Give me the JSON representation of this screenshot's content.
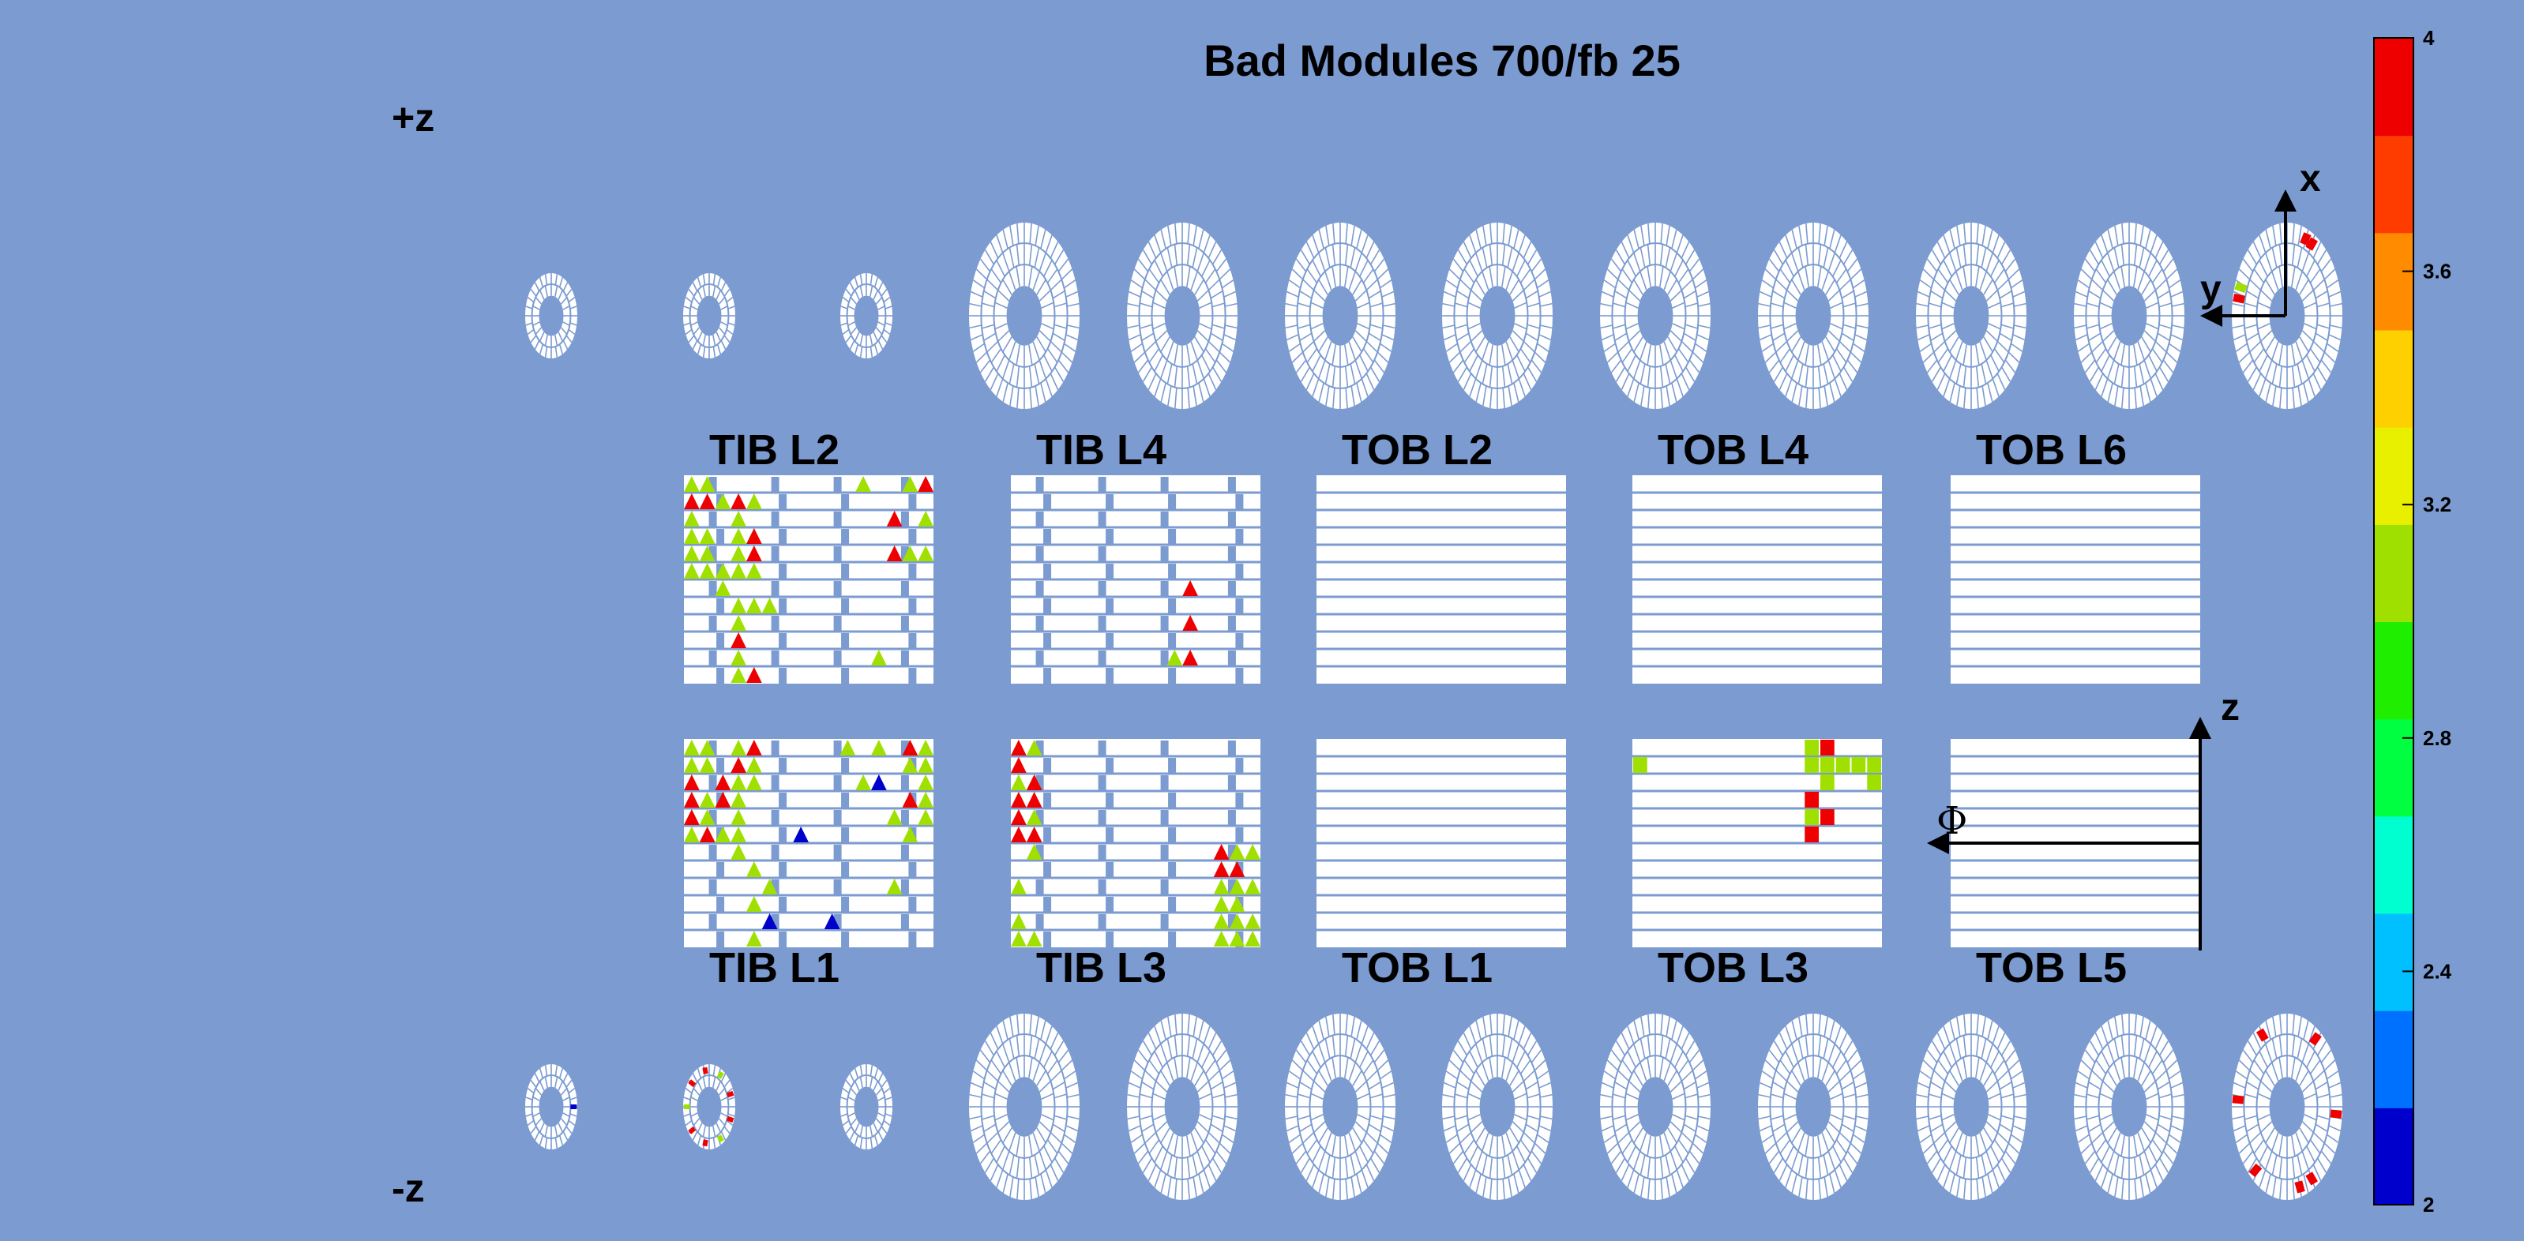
{
  "title": "Bad Modules 700/fb 25",
  "side_labels": {
    "plus": "+z",
    "minus": "-z"
  },
  "axis_glyphs": {
    "x": "x",
    "y": "y",
    "z": "z",
    "phi": "Φ"
  },
  "colors": {
    "background": "#7b9bd1",
    "module": "#ffffff",
    "frame": "#000000"
  },
  "colorbar": {
    "min": 2,
    "max": 4,
    "tick_labels": [
      "4",
      "3.6",
      "3.2",
      "2.8",
      "2.4",
      "2"
    ],
    "stops": [
      "#0000cc",
      "#0070ff",
      "#00c0ff",
      "#00ffd0",
      "#00ff40",
      "#20ee00",
      "#a0e000",
      "#e8f000",
      "#ffd000",
      "#ff8c00",
      "#ff3c00",
      "#ee0000"
    ]
  },
  "chart_data": {
    "type": "heatmap",
    "title": "Bad Modules 700/fb 25",
    "value_range": [
      2,
      4
    ],
    "barrel_layers": [
      {
        "name": "TIB L2",
        "side": "upper",
        "bad_modules": [
          {
            "row": 0,
            "col": 0,
            "value": 3.1
          },
          {
            "row": 0,
            "col": 1,
            "value": 3.1
          },
          {
            "row": 0,
            "col": 11,
            "value": 3.1
          },
          {
            "row": 0,
            "col": 14,
            "value": 3.1
          },
          {
            "row": 0,
            "col": 15,
            "value": 3.9
          },
          {
            "row": 1,
            "col": 0,
            "value": 3.9
          },
          {
            "row": 1,
            "col": 1,
            "value": 3.9
          },
          {
            "row": 1,
            "col": 2,
            "value": 3.1
          },
          {
            "row": 1,
            "col": 3,
            "value": 3.9
          },
          {
            "row": 1,
            "col": 4,
            "value": 3.1
          },
          {
            "row": 2,
            "col": 0,
            "value": 3.1
          },
          {
            "row": 2,
            "col": 3,
            "value": 3.1
          },
          {
            "row": 2,
            "col": 13,
            "value": 3.9
          },
          {
            "row": 2,
            "col": 15,
            "value": 3.1
          },
          {
            "row": 3,
            "col": 0,
            "value": 3.1
          },
          {
            "row": 3,
            "col": 1,
            "value": 3.1
          },
          {
            "row": 3,
            "col": 3,
            "value": 3.1
          },
          {
            "row": 3,
            "col": 4,
            "value": 3.9
          },
          {
            "row": 4,
            "col": 0,
            "value": 3.1
          },
          {
            "row": 4,
            "col": 1,
            "value": 3.1
          },
          {
            "row": 4,
            "col": 3,
            "value": 3.1
          },
          {
            "row": 4,
            "col": 4,
            "value": 3.9
          },
          {
            "row": 4,
            "col": 13,
            "value": 3.9
          },
          {
            "row": 4,
            "col": 14,
            "value": 3.1
          },
          {
            "row": 4,
            "col": 15,
            "value": 3.1
          },
          {
            "row": 5,
            "col": 0,
            "value": 3.1
          },
          {
            "row": 5,
            "col": 1,
            "value": 3.1
          },
          {
            "row": 5,
            "col": 2,
            "value": 3.1
          },
          {
            "row": 5,
            "col": 3,
            "value": 3.1
          },
          {
            "row": 5,
            "col": 4,
            "value": 3.1
          },
          {
            "row": 6,
            "col": 2,
            "value": 3.1
          },
          {
            "row": 7,
            "col": 3,
            "value": 3.1
          },
          {
            "row": 7,
            "col": 4,
            "value": 3.1
          },
          {
            "row": 7,
            "col": 5,
            "value": 3.1
          },
          {
            "row": 8,
            "col": 3,
            "value": 3.1
          },
          {
            "row": 9,
            "col": 3,
            "value": 3.9
          },
          {
            "row": 10,
            "col": 3,
            "value": 3.1
          },
          {
            "row": 10,
            "col": 12,
            "value": 3.1
          },
          {
            "row": 11,
            "col": 3,
            "value": 3.1
          },
          {
            "row": 11,
            "col": 4,
            "value": 3.9
          }
        ]
      },
      {
        "name": "TIB L4",
        "side": "upper",
        "bad_modules": [
          {
            "row": 6,
            "col": 11,
            "value": 3.9
          },
          {
            "row": 8,
            "col": 11,
            "value": 3.9
          },
          {
            "row": 10,
            "col": 11,
            "value": 3.9
          },
          {
            "row": 10,
            "col": 10,
            "value": 3.1
          }
        ]
      },
      {
        "name": "TOB L2",
        "side": "upper",
        "bad_modules": []
      },
      {
        "name": "TOB L4",
        "side": "upper",
        "bad_modules": []
      },
      {
        "name": "TOB L6",
        "side": "upper",
        "bad_modules": []
      },
      {
        "name": "TIB L1",
        "side": "lower",
        "bad_modules": [
          {
            "row": 0,
            "col": 0,
            "value": 3.1
          },
          {
            "row": 0,
            "col": 1,
            "value": 3.1
          },
          {
            "row": 0,
            "col": 3,
            "value": 3.1
          },
          {
            "row": 0,
            "col": 4,
            "value": 3.9
          },
          {
            "row": 0,
            "col": 10,
            "value": 3.1
          },
          {
            "row": 0,
            "col": 12,
            "value": 3.1
          },
          {
            "row": 0,
            "col": 14,
            "value": 3.9
          },
          {
            "row": 0,
            "col": 15,
            "value": 3.1
          },
          {
            "row": 1,
            "col": 0,
            "value": 3.1
          },
          {
            "row": 1,
            "col": 1,
            "value": 3.1
          },
          {
            "row": 1,
            "col": 3,
            "value": 3.9
          },
          {
            "row": 1,
            "col": 4,
            "value": 3.1
          },
          {
            "row": 1,
            "col": 14,
            "value": 3.1
          },
          {
            "row": 1,
            "col": 15,
            "value": 3.1
          },
          {
            "row": 2,
            "col": 0,
            "value": 3.9
          },
          {
            "row": 2,
            "col": 2,
            "value": 3.9
          },
          {
            "row": 2,
            "col": 3,
            "value": 3.1
          },
          {
            "row": 2,
            "col": 4,
            "value": 3.1
          },
          {
            "row": 2,
            "col": 11,
            "value": 3.1
          },
          {
            "row": 2,
            "col": 12,
            "value": 2.1
          },
          {
            "row": 2,
            "col": 15,
            "value": 3.1
          },
          {
            "row": 3,
            "col": 0,
            "value": 3.9
          },
          {
            "row": 3,
            "col": 1,
            "value": 3.1
          },
          {
            "row": 3,
            "col": 2,
            "value": 3.9
          },
          {
            "row": 3,
            "col": 3,
            "value": 3.1
          },
          {
            "row": 3,
            "col": 14,
            "value": 3.9
          },
          {
            "row": 3,
            "col": 15,
            "value": 3.1
          },
          {
            "row": 4,
            "col": 0,
            "value": 3.9
          },
          {
            "row": 4,
            "col": 1,
            "value": 3.1
          },
          {
            "row": 4,
            "col": 3,
            "value": 3.1
          },
          {
            "row": 4,
            "col": 13,
            "value": 3.1
          },
          {
            "row": 4,
            "col": 15,
            "value": 3.1
          },
          {
            "row": 5,
            "col": 0,
            "value": 3.1
          },
          {
            "row": 5,
            "col": 1,
            "value": 3.9
          },
          {
            "row": 5,
            "col": 2,
            "value": 3.1
          },
          {
            "row": 5,
            "col": 3,
            "value": 3.1
          },
          {
            "row": 5,
            "col": 7,
            "value": 2.1
          },
          {
            "row": 5,
            "col": 14,
            "value": 3.1
          },
          {
            "row": 6,
            "col": 3,
            "value": 3.1
          },
          {
            "row": 7,
            "col": 4,
            "value": 3.1
          },
          {
            "row": 8,
            "col": 5,
            "value": 3.1
          },
          {
            "row": 8,
            "col": 13,
            "value": 3.1
          },
          {
            "row": 9,
            "col": 4,
            "value": 3.1
          },
          {
            "row": 10,
            "col": 5,
            "value": 2.1
          },
          {
            "row": 10,
            "col": 9,
            "value": 2.1
          },
          {
            "row": 11,
            "col": 4,
            "value": 3.1
          }
        ]
      },
      {
        "name": "TIB L3",
        "side": "lower",
        "bad_modules": [
          {
            "row": 0,
            "col": 0,
            "value": 3.9
          },
          {
            "row": 0,
            "col": 1,
            "value": 3.1
          },
          {
            "row": 1,
            "col": 0,
            "value": 3.9
          },
          {
            "row": 2,
            "col": 0,
            "value": 3.1
          },
          {
            "row": 2,
            "col": 1,
            "value": 3.9
          },
          {
            "row": 3,
            "col": 0,
            "value": 3.9
          },
          {
            "row": 3,
            "col": 1,
            "value": 3.9
          },
          {
            "row": 4,
            "col": 0,
            "value": 3.9
          },
          {
            "row": 4,
            "col": 1,
            "value": 3.1
          },
          {
            "row": 5,
            "col": 0,
            "value": 3.9
          },
          {
            "row": 5,
            "col": 1,
            "value": 3.9
          },
          {
            "row": 6,
            "col": 1,
            "value": 3.1
          },
          {
            "row": 6,
            "col": 13,
            "value": 3.9
          },
          {
            "row": 6,
            "col": 14,
            "value": 3.1
          },
          {
            "row": 6,
            "col": 15,
            "value": 3.1
          },
          {
            "row": 7,
            "col": 13,
            "value": 3.9
          },
          {
            "row": 7,
            "col": 14,
            "value": 3.9
          },
          {
            "row": 8,
            "col": 0,
            "value": 3.1
          },
          {
            "row": 8,
            "col": 13,
            "value": 3.1
          },
          {
            "row": 8,
            "col": 14,
            "value": 3.1
          },
          {
            "row": 8,
            "col": 15,
            "value": 3.1
          },
          {
            "row": 9,
            "col": 13,
            "value": 3.1
          },
          {
            "row": 9,
            "col": 14,
            "value": 3.1
          },
          {
            "row": 10,
            "col": 0,
            "value": 3.1
          },
          {
            "row": 10,
            "col": 13,
            "value": 3.1
          },
          {
            "row": 10,
            "col": 14,
            "value": 3.1
          },
          {
            "row": 10,
            "col": 15,
            "value": 3.1
          },
          {
            "row": 11,
            "col": 0,
            "value": 3.1
          },
          {
            "row": 11,
            "col": 1,
            "value": 3.1
          },
          {
            "row": 11,
            "col": 13,
            "value": 3.1
          },
          {
            "row": 11,
            "col": 14,
            "value": 3.1
          },
          {
            "row": 11,
            "col": 15,
            "value": 3.1
          }
        ]
      },
      {
        "name": "TOB L1",
        "side": "lower",
        "bad_modules": []
      },
      {
        "name": "TOB L3",
        "side": "lower",
        "bad_modules": [
          {
            "row": 0,
            "col": 11,
            "value": 3.1
          },
          {
            "row": 0,
            "col": 12,
            "value": 3.9
          },
          {
            "row": 1,
            "col": 0,
            "value": 3.1
          },
          {
            "row": 1,
            "col": 11,
            "value": 3.1
          },
          {
            "row": 1,
            "col": 12,
            "value": 3.1
          },
          {
            "row": 1,
            "col": 13,
            "value": 3.1
          },
          {
            "row": 1,
            "col": 14,
            "value": 3.1
          },
          {
            "row": 1,
            "col": 15,
            "value": 3.1
          },
          {
            "row": 2,
            "col": 12,
            "value": 3.1
          },
          {
            "row": 2,
            "col": 15,
            "value": 3.1
          },
          {
            "row": 3,
            "col": 11,
            "value": 3.9
          },
          {
            "row": 4,
            "col": 11,
            "value": 3.1
          },
          {
            "row": 4,
            "col": 12,
            "value": 3.9
          },
          {
            "row": 5,
            "col": 11,
            "value": 3.9
          }
        ]
      },
      {
        "name": "TOB L5",
        "side": "lower",
        "bad_modules": []
      }
    ],
    "endcap_disks": {
      "plus_z": [
        {
          "size": "small",
          "bad_modules": []
        },
        {
          "size": "small",
          "bad_modules": []
        },
        {
          "size": "small",
          "bad_modules": []
        },
        {
          "size": "large",
          "bad_modules": []
        },
        {
          "size": "large",
          "bad_modules": []
        },
        {
          "size": "large",
          "bad_modules": []
        },
        {
          "size": "large",
          "bad_modules": []
        },
        {
          "size": "large",
          "bad_modules": []
        },
        {
          "size": "large",
          "bad_modules": []
        },
        {
          "size": "large",
          "bad_modules": []
        },
        {
          "size": "large",
          "bad_modules": []
        },
        {
          "size": "large",
          "bad_modules": [
            {
              "angle": 60,
              "value": 3.9
            },
            {
              "angle": 68,
              "value": 3.9
            },
            {
              "angle": 160,
              "value": 3.1
            },
            {
              "angle": 168,
              "value": 3.9
            }
          ]
        }
      ],
      "minus_z": [
        {
          "size": "small",
          "bad_modules": [
            {
              "angle": 0,
              "value": 2.1
            }
          ]
        },
        {
          "size": "small",
          "bad_modules": [
            {
              "angle": 20,
              "value": 3.9
            },
            {
              "angle": 60,
              "value": 3.1
            },
            {
              "angle": 100,
              "value": 3.9
            },
            {
              "angle": 140,
              "value": 3.9
            },
            {
              "angle": 180,
              "value": 3.1
            },
            {
              "angle": 220,
              "value": 3.9
            },
            {
              "angle": 260,
              "value": 3.9
            },
            {
              "angle": 300,
              "value": 3.1
            },
            {
              "angle": 340,
              "value": 3.9
            }
          ]
        },
        {
          "size": "small",
          "bad_modules": []
        },
        {
          "size": "large",
          "bad_modules": []
        },
        {
          "size": "large",
          "bad_modules": []
        },
        {
          "size": "large",
          "bad_modules": []
        },
        {
          "size": "large",
          "bad_modules": []
        },
        {
          "size": "large",
          "bad_modules": []
        },
        {
          "size": "large",
          "bad_modules": []
        },
        {
          "size": "large",
          "bad_modules": []
        },
        {
          "size": "large",
          "bad_modules": []
        },
        {
          "size": "large",
          "bad_modules": [
            {
              "angle": 55,
              "value": 3.9
            },
            {
              "angle": 120,
              "value": 3.9
            },
            {
              "angle": 175,
              "value": 3.9
            },
            {
              "angle": 230,
              "value": 3.9
            },
            {
              "angle": 285,
              "value": 3.9
            },
            {
              "angle": 300,
              "value": 3.9
            },
            {
              "angle": 355,
              "value": 3.9
            }
          ]
        }
      ]
    }
  }
}
